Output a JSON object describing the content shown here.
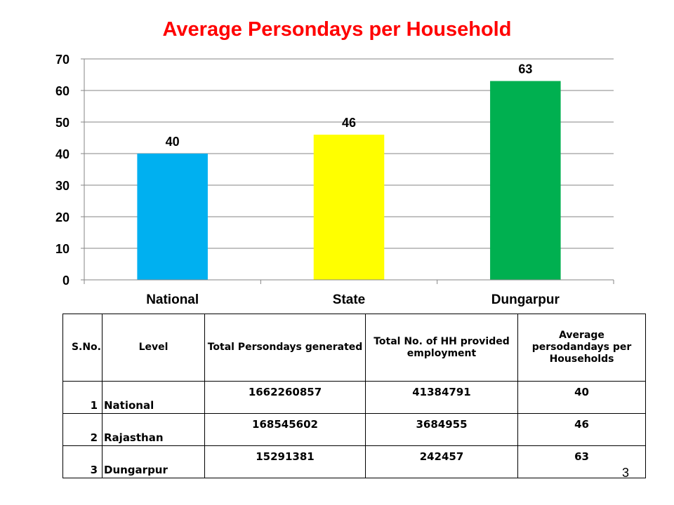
{
  "chart_data": {
    "type": "bar",
    "title": "Average Persondays per Household",
    "xlabel": "",
    "ylabel": "",
    "categories": [
      "National",
      "State",
      "Dungarpur"
    ],
    "values": [
      40,
      46,
      63
    ],
    "data_labels": [
      "40",
      "46",
      "63"
    ],
    "ylim": [
      0,
      70
    ],
    "yticks": [
      0,
      10,
      20,
      30,
      40,
      50,
      60,
      70
    ],
    "grid": true,
    "legend": "none",
    "colors": [
      "#00b0f0",
      "#ffff00",
      "#00b050"
    ]
  },
  "table": {
    "headers": {
      "sno": "S.No.",
      "level": "Level",
      "total": "Total  Persondays generated",
      "hh": "Total  No. of HH provided employment",
      "avg": "Average persodandays per Households"
    },
    "rows": [
      {
        "sno": "1",
        "level": "National",
        "total": "1662260857",
        "hh": "41384791",
        "avg": "40"
      },
      {
        "sno": "2",
        "level": "Rajasthan",
        "total": "168545602",
        "hh": "3684955",
        "avg": "46"
      },
      {
        "sno": "3",
        "level": "Dungarpur",
        "total": "15291381",
        "hh": "242457",
        "avg": "63"
      }
    ]
  },
  "page_number": "3"
}
